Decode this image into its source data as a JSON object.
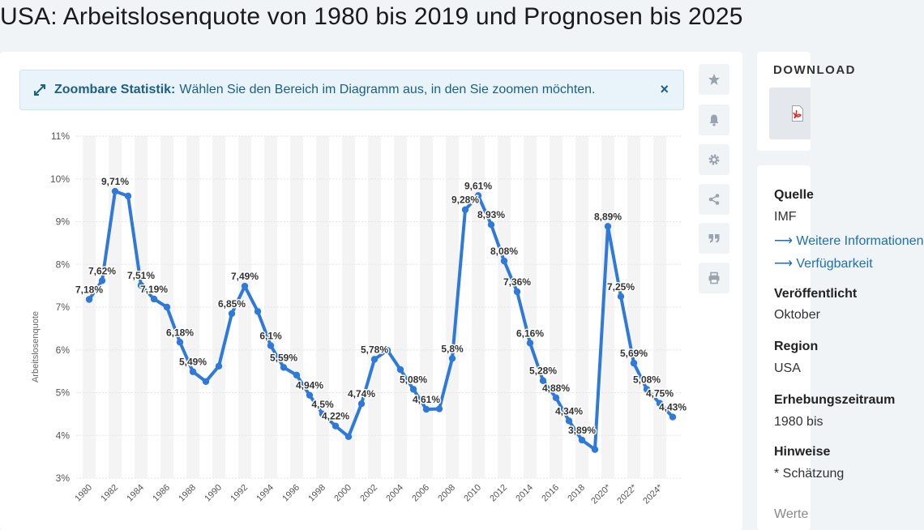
{
  "page": {
    "title": "USA: Arbeitslosenquote von 1980 bis 2019 und Prognosen bis 2025"
  },
  "banner": {
    "strong": "Zoombare Statistik:",
    "text": "Wählen Sie den Bereich im Diagramm aus, in den Sie zoomen möchten.",
    "close": "×"
  },
  "toolbar": {
    "buttons": [
      "star-icon",
      "bell-icon",
      "gear-icon",
      "share-icon",
      "quote-icon",
      "print-icon"
    ]
  },
  "sidebar": {
    "download_label": "DOWNLOAD",
    "source_label": "Quelle",
    "source_value": "IMF",
    "link1": "⟶ Weitere Informationen",
    "link2": "⟶ Verfügbarkeit",
    "published_label": "Veröffentlicht",
    "published_value": "Oktober",
    "region_label": "Region",
    "region_value": "USA",
    "survey_label": "Erhebungszeitraum",
    "survey_value": "1980 bis",
    "note_label": "Hinweise",
    "note_value": "* Schätzung",
    "more_value": "Werte"
  },
  "chart_data": {
    "type": "line",
    "ylabel": "Arbeitslosenquote",
    "xlabel": "",
    "ylim": [
      3,
      11
    ],
    "yticks": [
      "3%",
      "4%",
      "5%",
      "6%",
      "7%",
      "8%",
      "9%",
      "10%",
      "11%"
    ],
    "x": [
      1980,
      1981,
      1982,
      1983,
      1984,
      1985,
      1986,
      1987,
      1988,
      1989,
      1990,
      1991,
      1992,
      1993,
      1994,
      1995,
      1996,
      1997,
      1998,
      1999,
      2000,
      2001,
      2002,
      2003,
      2004,
      2005,
      2006,
      2007,
      2008,
      2009,
      2010,
      2011,
      2012,
      2013,
      2014,
      2015,
      2016,
      2017,
      2018,
      2019,
      2020,
      2021,
      2022,
      2023,
      2024,
      2025
    ],
    "xtick_labels": [
      "1980",
      "1982",
      "1984",
      "1986",
      "1988",
      "1990",
      "1992",
      "1994",
      "1996",
      "1998",
      "2000",
      "2002",
      "2004",
      "2006",
      "2008",
      "2010",
      "2012",
      "2014",
      "2016",
      "2018",
      "2020*",
      "2022*",
      "2024*"
    ],
    "series": [
      {
        "values": [
          7.18,
          7.62,
          9.71,
          9.6,
          7.51,
          7.19,
          7.0,
          6.18,
          5.49,
          5.26,
          5.62,
          6.85,
          7.49,
          6.9,
          6.1,
          5.59,
          5.41,
          4.94,
          4.5,
          4.22,
          3.97,
          4.74,
          5.78,
          5.99,
          5.54,
          5.08,
          4.61,
          4.62,
          5.8,
          9.28,
          9.61,
          8.93,
          8.08,
          7.36,
          6.16,
          5.28,
          4.88,
          4.34,
          3.89,
          3.67,
          8.89,
          7.25,
          5.69,
          5.08,
          4.75,
          4.43
        ],
        "labels": [
          "7,18%",
          "7,62%",
          "9,71%",
          "",
          "7,51%",
          "7,19%",
          "",
          "6,18%",
          "5,49%",
          "",
          "",
          "6,85%",
          "7,49%",
          "",
          "6,1%",
          "5,59%",
          "",
          "4,94%",
          "4,5%",
          "4,22%",
          "",
          "4,74%",
          "5,78%",
          "",
          "",
          "5,08%",
          "4,61%",
          "",
          "5,8%",
          "9,28%",
          "9,61%",
          "8,93%",
          "8,08%",
          "7,36%",
          "6,16%",
          "5,28%",
          "4,88%",
          "4,34%",
          "3,89%",
          "",
          "8,89%",
          "7,25%",
          "5,69%",
          "5,08%",
          "4,75%",
          "4,43%"
        ],
        "color": "#2f7ad9"
      }
    ],
    "grid": true,
    "legend": "none"
  }
}
